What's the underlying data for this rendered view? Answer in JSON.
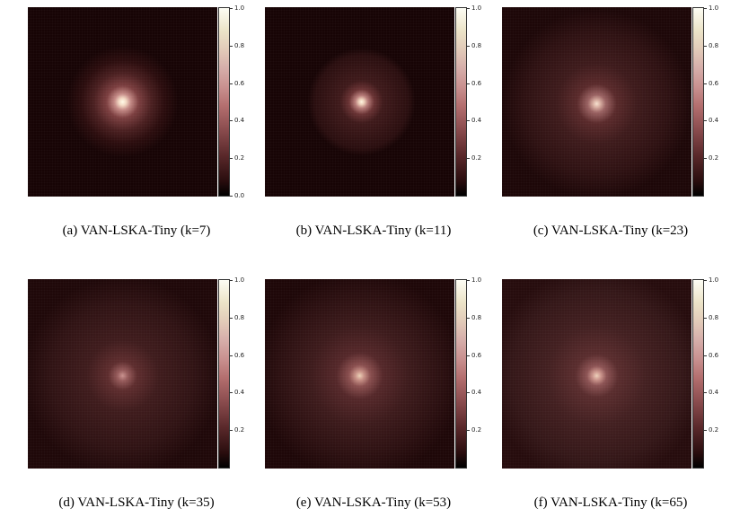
{
  "figure": {
    "panels": [
      {
        "caption": "(a) VAN-LSKA-Tiny (k=7)",
        "ticks": [
          "1.0",
          "0.8",
          "0.6",
          "0.4",
          "0.2",
          "0.0"
        ],
        "tick_values": [
          1.0,
          0.8,
          0.6,
          0.4,
          0.2,
          0.0
        ]
      },
      {
        "caption": "(b) VAN-LSKA-Tiny (k=11)",
        "ticks": [
          "1.0",
          "0.8",
          "0.6",
          "0.4",
          "0.2"
        ],
        "tick_values": [
          1.0,
          0.8,
          0.6,
          0.4,
          0.2
        ]
      },
      {
        "caption": "(c) VAN-LSKA-Tiny (k=23)",
        "ticks": [
          "1.0",
          "0.8",
          "0.6",
          "0.4",
          "0.2"
        ],
        "tick_values": [
          1.0,
          0.8,
          0.6,
          0.4,
          0.2
        ]
      },
      {
        "caption": "(d) VAN-LSKA-Tiny (k=35)",
        "ticks": [
          "1.0",
          "0.8",
          "0.6",
          "0.4",
          "0.2"
        ],
        "tick_values": [
          1.0,
          0.8,
          0.6,
          0.4,
          0.2
        ]
      },
      {
        "caption": "(e) VAN-LSKA-Tiny (k=53)",
        "ticks": [
          "1.0",
          "0.8",
          "0.6",
          "0.4",
          "0.2"
        ],
        "tick_values": [
          1.0,
          0.8,
          0.6,
          0.4,
          0.2
        ]
      },
      {
        "caption": "(f) VAN-LSKA-Tiny (k=65)",
        "ticks": [
          "1.0",
          "0.8",
          "0.6",
          "0.4",
          "0.2"
        ],
        "tick_values": [
          1.0,
          0.8,
          0.6,
          0.4,
          0.2
        ]
      }
    ],
    "colors": {
      "background": "#170405",
      "peak": "#fdfdf4"
    }
  }
}
